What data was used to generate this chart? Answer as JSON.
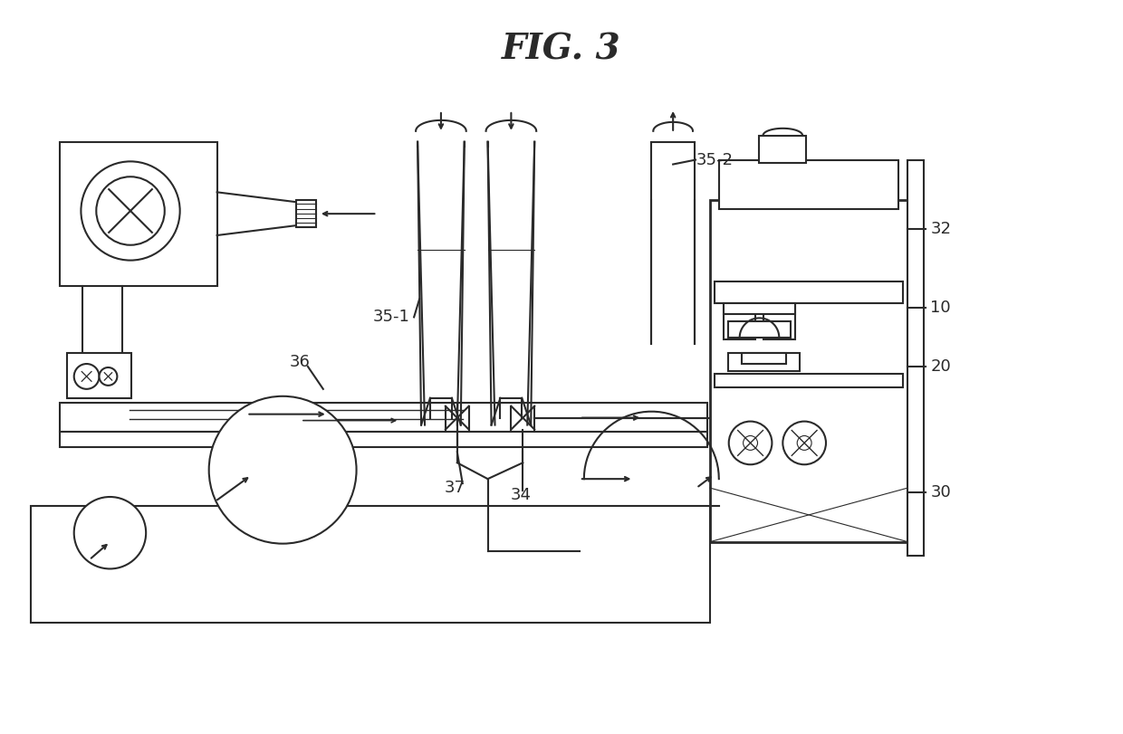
{
  "title": "FIG. 3",
  "bg_color": "#ffffff",
  "line_color": "#2a2a2a",
  "font_size_title": 28,
  "font_size_label": 13,
  "figw": 12.4,
  "figh": 8.11
}
